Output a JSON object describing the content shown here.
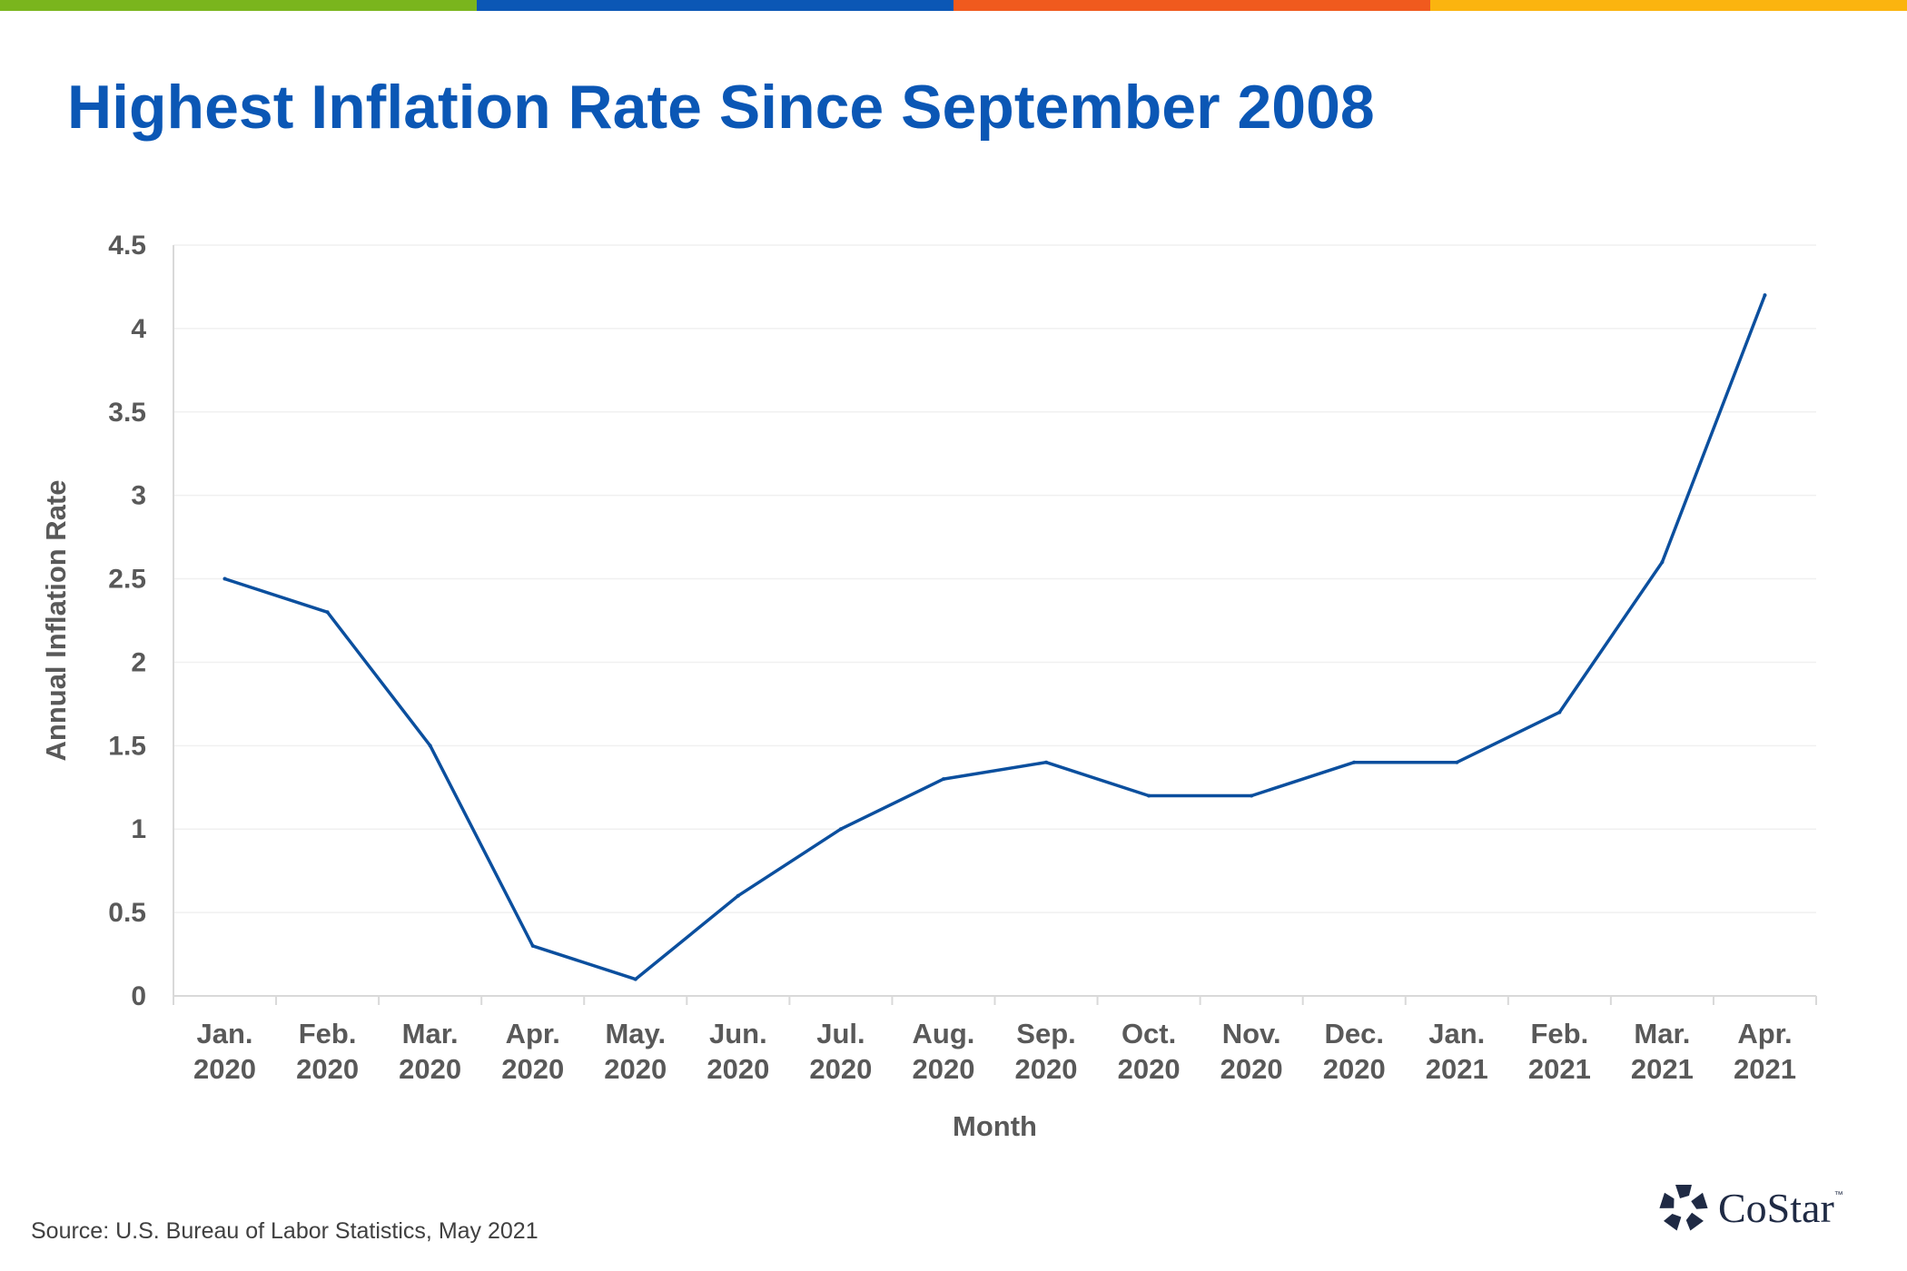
{
  "header": {
    "title": "Highest Inflation Rate Since September 2008",
    "stripe_colors": [
      "#7ab51d",
      "#0b57b5",
      "#f05a1e",
      "#fbb40f"
    ]
  },
  "colors": {
    "title": "#0b57b5",
    "line": "#0b4f9e",
    "axis_text": "#595959",
    "grid": "#f0f0f0"
  },
  "footer": {
    "source": "Source: U.S. Bureau of Labor Statistics, May 2021",
    "logo_text": "CoStar",
    "logo_tm": "™",
    "logo_icon": "costar-star-icon"
  },
  "chart_data": {
    "type": "line",
    "title": "Highest Inflation Rate Since September 2008",
    "xlabel": "Month",
    "ylabel": "Annual Inflation Rate",
    "categories": [
      [
        "Jan.",
        "2020"
      ],
      [
        "Feb.",
        "2020"
      ],
      [
        "Mar.",
        "2020"
      ],
      [
        "Apr.",
        "2020"
      ],
      [
        "May.",
        "2020"
      ],
      [
        "Jun.",
        "2020"
      ],
      [
        "Jul.",
        "2020"
      ],
      [
        "Aug.",
        "2020"
      ],
      [
        "Sep.",
        "2020"
      ],
      [
        "Oct.",
        "2020"
      ],
      [
        "Nov.",
        "2020"
      ],
      [
        "Dec.",
        "2020"
      ],
      [
        "Jan.",
        "2021"
      ],
      [
        "Feb.",
        "2021"
      ],
      [
        "Mar.",
        "2021"
      ],
      [
        "Apr.",
        "2021"
      ]
    ],
    "values": [
      2.5,
      2.3,
      1.5,
      0.3,
      0.1,
      0.6,
      1.0,
      1.3,
      1.4,
      1.2,
      1.2,
      1.4,
      1.4,
      1.7,
      2.6,
      4.2
    ],
    "ylim": [
      0,
      4.5
    ],
    "yticks": [
      "0",
      "0.5",
      "1",
      "1.5",
      "2",
      "2.5",
      "3",
      "3.5",
      "4",
      "4.5"
    ],
    "grid": true,
    "legend": "none"
  }
}
